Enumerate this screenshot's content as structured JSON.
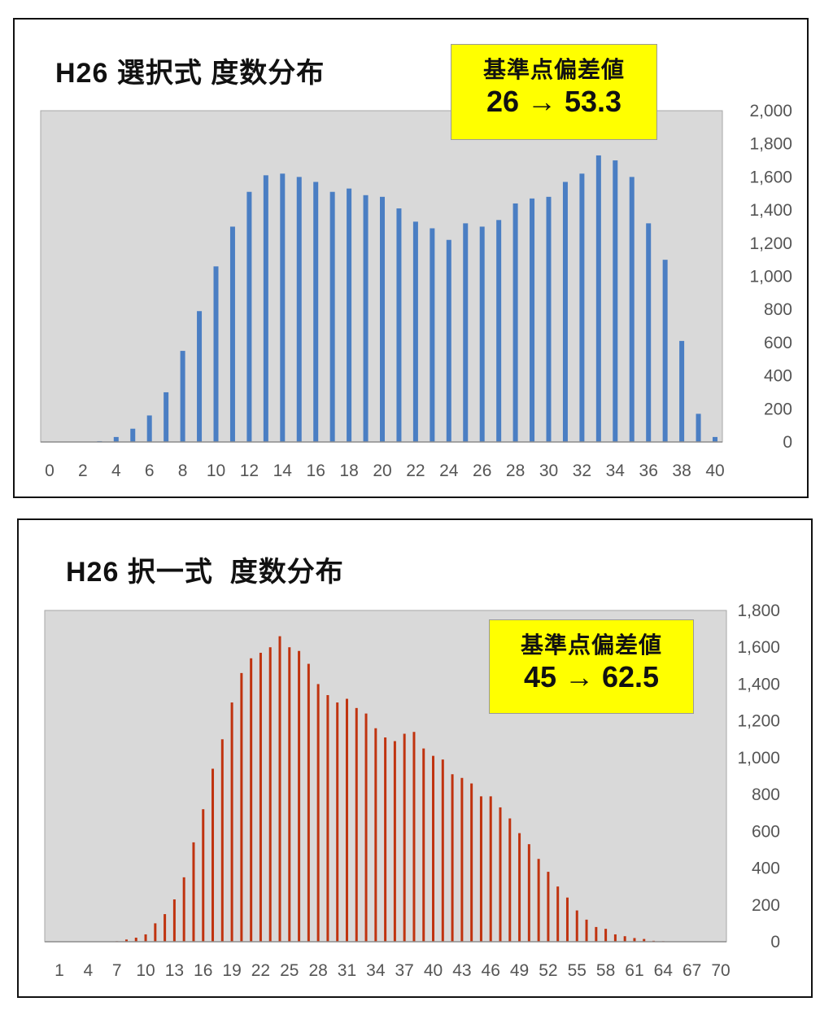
{
  "chart_data": [
    {
      "type": "bar",
      "title": "H26 選択式 度数分布",
      "annotation": {
        "line1": "基準点偏差値",
        "line2": "26 → 53.3"
      },
      "x": [
        0,
        1,
        2,
        3,
        4,
        5,
        6,
        7,
        8,
        9,
        10,
        11,
        12,
        13,
        14,
        15,
        16,
        17,
        18,
        19,
        20,
        21,
        22,
        23,
        24,
        25,
        26,
        27,
        28,
        29,
        30,
        31,
        32,
        33,
        34,
        35,
        36,
        37,
        38,
        39,
        40
      ],
      "values": [
        0,
        0,
        2,
        5,
        30,
        80,
        160,
        300,
        550,
        790,
        1060,
        1300,
        1510,
        1610,
        1620,
        1600,
        1570,
        1510,
        1530,
        1490,
        1480,
        1410,
        1330,
        1290,
        1220,
        1320,
        1300,
        1340,
        1440,
        1470,
        1480,
        1570,
        1620,
        1730,
        1700,
        1600,
        1320,
        1100,
        610,
        170,
        30
      ],
      "x_tick_labels": [
        "0",
        "2",
        "4",
        "6",
        "8",
        "10",
        "12",
        "14",
        "16",
        "18",
        "20",
        "22",
        "24",
        "26",
        "28",
        "30",
        "32",
        "34",
        "36",
        "38",
        "40"
      ],
      "y_tick_labels": [
        "0",
        "200",
        "400",
        "600",
        "800",
        "1,000",
        "1,200",
        "1,400",
        "1,600",
        "1,800",
        "2,000"
      ],
      "ylim": [
        0,
        2000
      ],
      "grid": false,
      "y_axis_side": "right",
      "colors": {
        "bar": "#4a7ec3",
        "plot_bg": "#d9d9d9",
        "callout_bg": "#ffff00"
      }
    },
    {
      "type": "bar",
      "title": "H26 択一式  度数分布",
      "annotation": {
        "line1": "基準点偏差値",
        "line2": "45 → 62.5"
      },
      "x": [
        1,
        2,
        3,
        4,
        5,
        6,
        7,
        8,
        9,
        10,
        11,
        12,
        13,
        14,
        15,
        16,
        17,
        18,
        19,
        20,
        21,
        22,
        23,
        24,
        25,
        26,
        27,
        28,
        29,
        30,
        31,
        32,
        33,
        34,
        35,
        36,
        37,
        38,
        39,
        40,
        41,
        42,
        43,
        44,
        45,
        46,
        47,
        48,
        49,
        50,
        51,
        52,
        53,
        54,
        55,
        56,
        57,
        58,
        59,
        60,
        61,
        62,
        63,
        64,
        65,
        66,
        67,
        68,
        69,
        70
      ],
      "values": [
        0,
        0,
        0,
        0,
        0,
        0,
        3,
        12,
        22,
        40,
        100,
        150,
        230,
        350,
        540,
        720,
        940,
        1100,
        1300,
        1460,
        1540,
        1570,
        1600,
        1660,
        1600,
        1580,
        1510,
        1400,
        1340,
        1300,
        1320,
        1270,
        1240,
        1160,
        1110,
        1090,
        1130,
        1140,
        1050,
        1010,
        990,
        910,
        890,
        860,
        790,
        790,
        730,
        670,
        590,
        530,
        450,
        380,
        300,
        240,
        170,
        120,
        80,
        70,
        40,
        30,
        20,
        15,
        5,
        3,
        2,
        1,
        0,
        0,
        0,
        0
      ],
      "x_tick_labels": [
        "1",
        "4",
        "7",
        "10",
        "13",
        "16",
        "19",
        "22",
        "25",
        "28",
        "31",
        "34",
        "37",
        "40",
        "43",
        "46",
        "49",
        "52",
        "55",
        "58",
        "61",
        "64",
        "67",
        "70"
      ],
      "y_tick_labels": [
        "0",
        "200",
        "400",
        "600",
        "800",
        "1,000",
        "1,200",
        "1,400",
        "1,600",
        "1,800"
      ],
      "ylim": [
        0,
        1800
      ],
      "grid": false,
      "y_axis_side": "right",
      "colors": {
        "bar": "#c0330f",
        "plot_bg": "#d9d9d9",
        "callout_bg": "#ffff00"
      }
    }
  ]
}
